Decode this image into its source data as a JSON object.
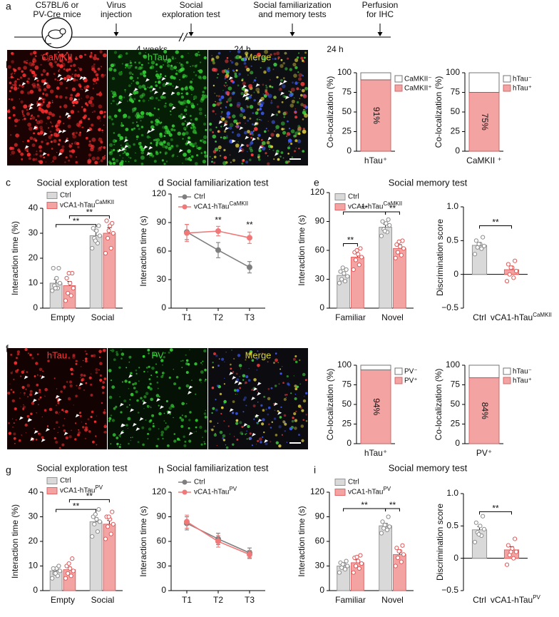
{
  "panel_labels": [
    "a",
    "b",
    "c",
    "d",
    "e",
    "f",
    "g",
    "h",
    "i"
  ],
  "timeline": {
    "mice_label": [
      "C57BL/6 or",
      "PV-Cre mice"
    ],
    "events": [
      [
        "Virus",
        "injection"
      ],
      [
        "Social",
        "exploration test"
      ],
      [
        "Social familiarization",
        "and memory tests"
      ],
      [
        "Perfusion",
        "for IHC"
      ]
    ],
    "intervals": [
      "4 weeks",
      "24 h",
      "24 h"
    ]
  },
  "images": [
    {
      "labels": [
        "CaMKII",
        "hTau",
        "Merge"
      ],
      "label_colors": [
        "#ff3b3b",
        "#3fd23f",
        "#d6d23a"
      ]
    },
    {
      "labels": [
        "hTau",
        "PV",
        "Merge"
      ],
      "label_colors": [
        "#ff3b3b",
        "#3fd23f",
        "#d6d23a"
      ]
    }
  ],
  "chart_data": [
    {
      "type": "bar",
      "stacked": true,
      "ylabel": "Co-localization (%)",
      "categories": [
        "hTau⁺"
      ],
      "ylim": [
        0,
        100
      ],
      "yticks": [
        0,
        25,
        50,
        75,
        100
      ],
      "series": [
        {
          "name": "CaMKII⁺",
          "color": "#f4a3a3",
          "edge_color": "#d06060",
          "values": [
            91
          ],
          "value_labels": [
            "91%"
          ]
        },
        {
          "name": "CaMKII⁻",
          "color": "#ffffff",
          "edge_color": "#666666",
          "values": [
            9
          ]
        }
      ]
    },
    {
      "type": "bar",
      "stacked": true,
      "ylabel": "Co-localization (%)",
      "categories": [
        "CaMKII ⁺"
      ],
      "ylim": [
        0,
        100
      ],
      "yticks": [
        0,
        25,
        50,
        75,
        100
      ],
      "series": [
        {
          "name": "hTau⁺",
          "color": "#f4a3a3",
          "edge_color": "#d06060",
          "values": [
            75
          ],
          "value_labels": [
            "75%"
          ]
        },
        {
          "name": "hTau⁻",
          "color": "#ffffff",
          "edge_color": "#666666",
          "values": [
            25
          ]
        }
      ]
    },
    {
      "type": "bar",
      "title": "Social exploration test",
      "ylabel": "Interaction time (%)",
      "categories": [
        "Empty",
        "Social"
      ],
      "ylim": [
        0,
        40
      ],
      "yticks": [
        0,
        10,
        20,
        30,
        40
      ],
      "series": [
        {
          "name": "Ctrl",
          "color": "#d9d9d9",
          "edge_color": "#8c8c8c",
          "values": [
            10,
            29
          ],
          "errors": [
            1.5,
            1.8
          ],
          "points": [
            [
              7,
              8,
              9,
              10,
              12,
              16,
              16,
              8
            ],
            [
              24,
              26,
              28,
              29,
              31,
              32,
              33,
              27
            ]
          ]
        },
        {
          "name": "vCA1-hTau",
          "name_superscript": "CaMKII",
          "color": "#f4a3a3",
          "edge_color": "#e05a5a",
          "values": [
            9,
            30
          ],
          "errors": [
            1.7,
            2.2
          ],
          "points": [
            [
              3,
              5,
              6,
              8,
              10,
              12,
              14,
              14
            ],
            [
              22,
              24,
              28,
              30,
              33,
              35,
              34,
              31
            ]
          ]
        }
      ],
      "annotations": [
        "**",
        "**"
      ]
    },
    {
      "type": "line",
      "title": "Social familiarization test",
      "ylabel": "Interaction time (s)",
      "categories": [
        "T1",
        "T2",
        "T3"
      ],
      "ylim": [
        0,
        120
      ],
      "yticks": [
        0,
        30,
        60,
        90,
        120
      ],
      "series": [
        {
          "name": "Ctrl",
          "color": "#7f7f7f",
          "values": [
            80,
            61,
            43
          ],
          "errors": [
            8,
            8,
            6
          ]
        },
        {
          "name": "vCA1-hTau",
          "name_superscript": "CaMKII",
          "color": "#f07878",
          "values": [
            79,
            81,
            74
          ],
          "errors": [
            9,
            5,
            6
          ]
        }
      ],
      "annotations": [
        "**",
        "**"
      ]
    },
    {
      "type": "bar",
      "title": "Social memory test",
      "ylabel": "Interaction time (s)",
      "categories": [
        "Familiar",
        "Novel"
      ],
      "ylim": [
        0,
        120
      ],
      "yticks": [
        0,
        30,
        60,
        90,
        120
      ],
      "series": [
        {
          "name": "Ctrl",
          "color": "#d9d9d9",
          "edge_color": "#8c8c8c",
          "values": [
            34,
            84
          ],
          "errors": [
            3,
            3
          ],
          "points": [
            [
              26,
              28,
              30,
              33,
              36,
              38,
              40,
              42
            ],
            [
              75,
              79,
              82,
              86,
              88,
              90,
              92,
              80
            ]
          ]
        },
        {
          "name": "vCA1-hTau",
          "name_superscript": "CaMKII",
          "color": "#f4a3a3",
          "edge_color": "#e05a5a",
          "values": [
            53,
            62
          ],
          "errors": [
            4,
            4
          ],
          "points": [
            [
              40,
              45,
              50,
              53,
              56,
              58,
              62,
              60
            ],
            [
              52,
              55,
              58,
              62,
              64,
              66,
              70,
              69
            ]
          ]
        }
      ],
      "annotations": [
        "**",
        "**",
        "**"
      ]
    },
    {
      "type": "bar",
      "ylabel": "Discrimination score",
      "categories": [
        "Ctrl",
        "vCA1-hTau"
      ],
      "category_superscripts": [
        null,
        "CaMKII"
      ],
      "ylim": [
        -0.5,
        1
      ],
      "yticks": [
        {
          "value": -0.5,
          "label": "−0.5"
        },
        0,
        0.5,
        {
          "value": 1,
          "label": "1.0"
        }
      ],
      "values": [
        0.43,
        0.07
      ],
      "errors": [
        0.04,
        0.05
      ],
      "colors": [
        "#d9d9d9",
        "#f4a3a3"
      ],
      "edge_colors": [
        "#8c8c8c",
        "#e05a5a"
      ],
      "points": [
        [
          0.3,
          0.38,
          0.4,
          0.42,
          0.45,
          0.5,
          0.55,
          0.45
        ],
        [
          -0.1,
          -0.05,
          0,
          0.05,
          0.1,
          0.15,
          0.2,
          0.1
        ]
      ],
      "annotations": [
        "**"
      ]
    },
    {
      "type": "bar",
      "stacked": true,
      "ylabel": "Co-localization (%)",
      "categories": [
        "hTau⁺"
      ],
      "ylim": [
        0,
        100
      ],
      "yticks": [
        0,
        25,
        50,
        75,
        100
      ],
      "series": [
        {
          "name": "PV⁺",
          "color": "#f4a3a3",
          "edge_color": "#d06060",
          "values": [
            94
          ],
          "value_labels": [
            "94%"
          ]
        },
        {
          "name": "PV⁻",
          "color": "#ffffff",
          "edge_color": "#666666",
          "values": [
            6
          ]
        }
      ]
    },
    {
      "type": "bar",
      "stacked": true,
      "ylabel": "Co-localization (%)",
      "categories": [
        "PV⁺"
      ],
      "ylim": [
        0,
        100
      ],
      "yticks": [
        0,
        25,
        50,
        75,
        100
      ],
      "series": [
        {
          "name": "hTau⁺",
          "color": "#f4a3a3",
          "edge_color": "#d06060",
          "values": [
            84
          ],
          "value_labels": [
            "84%"
          ]
        },
        {
          "name": "hTau⁻",
          "color": "#ffffff",
          "edge_color": "#666666",
          "values": [
            16
          ]
        }
      ]
    },
    {
      "type": "bar",
      "title": "Social exploration test",
      "ylabel": "Interaction time (%)",
      "categories": [
        "Empty",
        "Social"
      ],
      "ylim": [
        0,
        40
      ],
      "yticks": [
        0,
        10,
        20,
        30,
        40
      ],
      "series": [
        {
          "name": "Ctrl",
          "color": "#d9d9d9",
          "edge_color": "#8c8c8c",
          "values": [
            8,
            28
          ],
          "errors": [
            0.8,
            1.6
          ],
          "points": [
            [
              5,
              6,
              7,
              8,
              9,
              9,
              10,
              7
            ],
            [
              22,
              24,
              27,
              28,
              29,
              30,
              33,
              31
            ]
          ]
        },
        {
          "name": "vCA1-hTau",
          "name_superscript": "PV",
          "color": "#f4a3a3",
          "edge_color": "#e05a5a",
          "values": [
            8.5,
            27
          ],
          "errors": [
            1.1,
            1.5
          ],
          "points": [
            [
              5,
              6,
              7,
              8,
              9,
              10,
              13,
              11
            ],
            [
              21,
              23,
              26,
              27,
              29,
              30,
              32,
              30
            ]
          ]
        }
      ],
      "annotations": [
        "**",
        "**"
      ]
    },
    {
      "type": "line",
      "title": "Social  familiarization test",
      "ylabel": "Interaction time (s)",
      "categories": [
        "T1",
        "T2",
        "T3"
      ],
      "ylim": [
        0,
        120
      ],
      "yticks": [
        0,
        30,
        60,
        90,
        120
      ],
      "series": [
        {
          "name": "Ctrl",
          "color": "#7f7f7f",
          "values": [
            82,
            63,
            46
          ],
          "errors": [
            8,
            7,
            6
          ]
        },
        {
          "name": "vCA1-hTau",
          "name_superscript": "PV",
          "color": "#f07878",
          "values": [
            84,
            60,
            44
          ],
          "errors": [
            8,
            7,
            5
          ]
        }
      ]
    },
    {
      "type": "bar",
      "title": "Social memory test",
      "ylabel": "Interaction time (s)",
      "categories": [
        "Familiar",
        "Novel"
      ],
      "ylim": [
        0,
        120
      ],
      "yticks": [
        0,
        30,
        60,
        90,
        120
      ],
      "series": [
        {
          "name": "Ctrl",
          "color": "#d9d9d9",
          "edge_color": "#8c8c8c",
          "values": [
            30,
            79
          ],
          "errors": [
            3,
            3
          ],
          "points": [
            [
              22,
              26,
              28,
              30,
              32,
              34,
              36,
              32
            ],
            [
              70,
              74,
              76,
              78,
              80,
              84,
              90,
              80
            ]
          ]
        },
        {
          "name": "vCA1-hTau",
          "name_superscript": "PV",
          "color": "#f4a3a3",
          "edge_color": "#e05a5a",
          "values": [
            34,
            44
          ],
          "errors": [
            3.5,
            4
          ],
          "points": [
            [
              22,
              27,
              30,
              33,
              36,
              40,
              43,
              41
            ],
            [
              30,
              35,
              40,
              44,
              48,
              52,
              55,
              48
            ]
          ]
        }
      ],
      "annotations": [
        "**",
        "**"
      ]
    },
    {
      "type": "bar",
      "ylabel": "Discrimination score",
      "categories": [
        "Ctrl",
        "vCA1-hTau"
      ],
      "category_superscripts": [
        null,
        "PV"
      ],
      "ylim": [
        -0.5,
        1
      ],
      "yticks": [
        {
          "value": -0.5,
          "label": "−0.5"
        },
        0,
        0.5,
        {
          "value": 1,
          "label": "1.0"
        }
      ],
      "values": [
        0.44,
        0.13
      ],
      "errors": [
        0.05,
        0.05
      ],
      "colors": [
        "#d9d9d9",
        "#f4a3a3"
      ],
      "edge_colors": [
        "#8c8c8c",
        "#e05a5a"
      ],
      "points": [
        [
          0.25,
          0.35,
          0.4,
          0.45,
          0.5,
          0.55,
          0.65,
          0.37
        ],
        [
          -0.1,
          0,
          0.05,
          0.1,
          0.15,
          0.2,
          0.3,
          0.1
        ]
      ],
      "annotations": [
        "**"
      ]
    }
  ]
}
